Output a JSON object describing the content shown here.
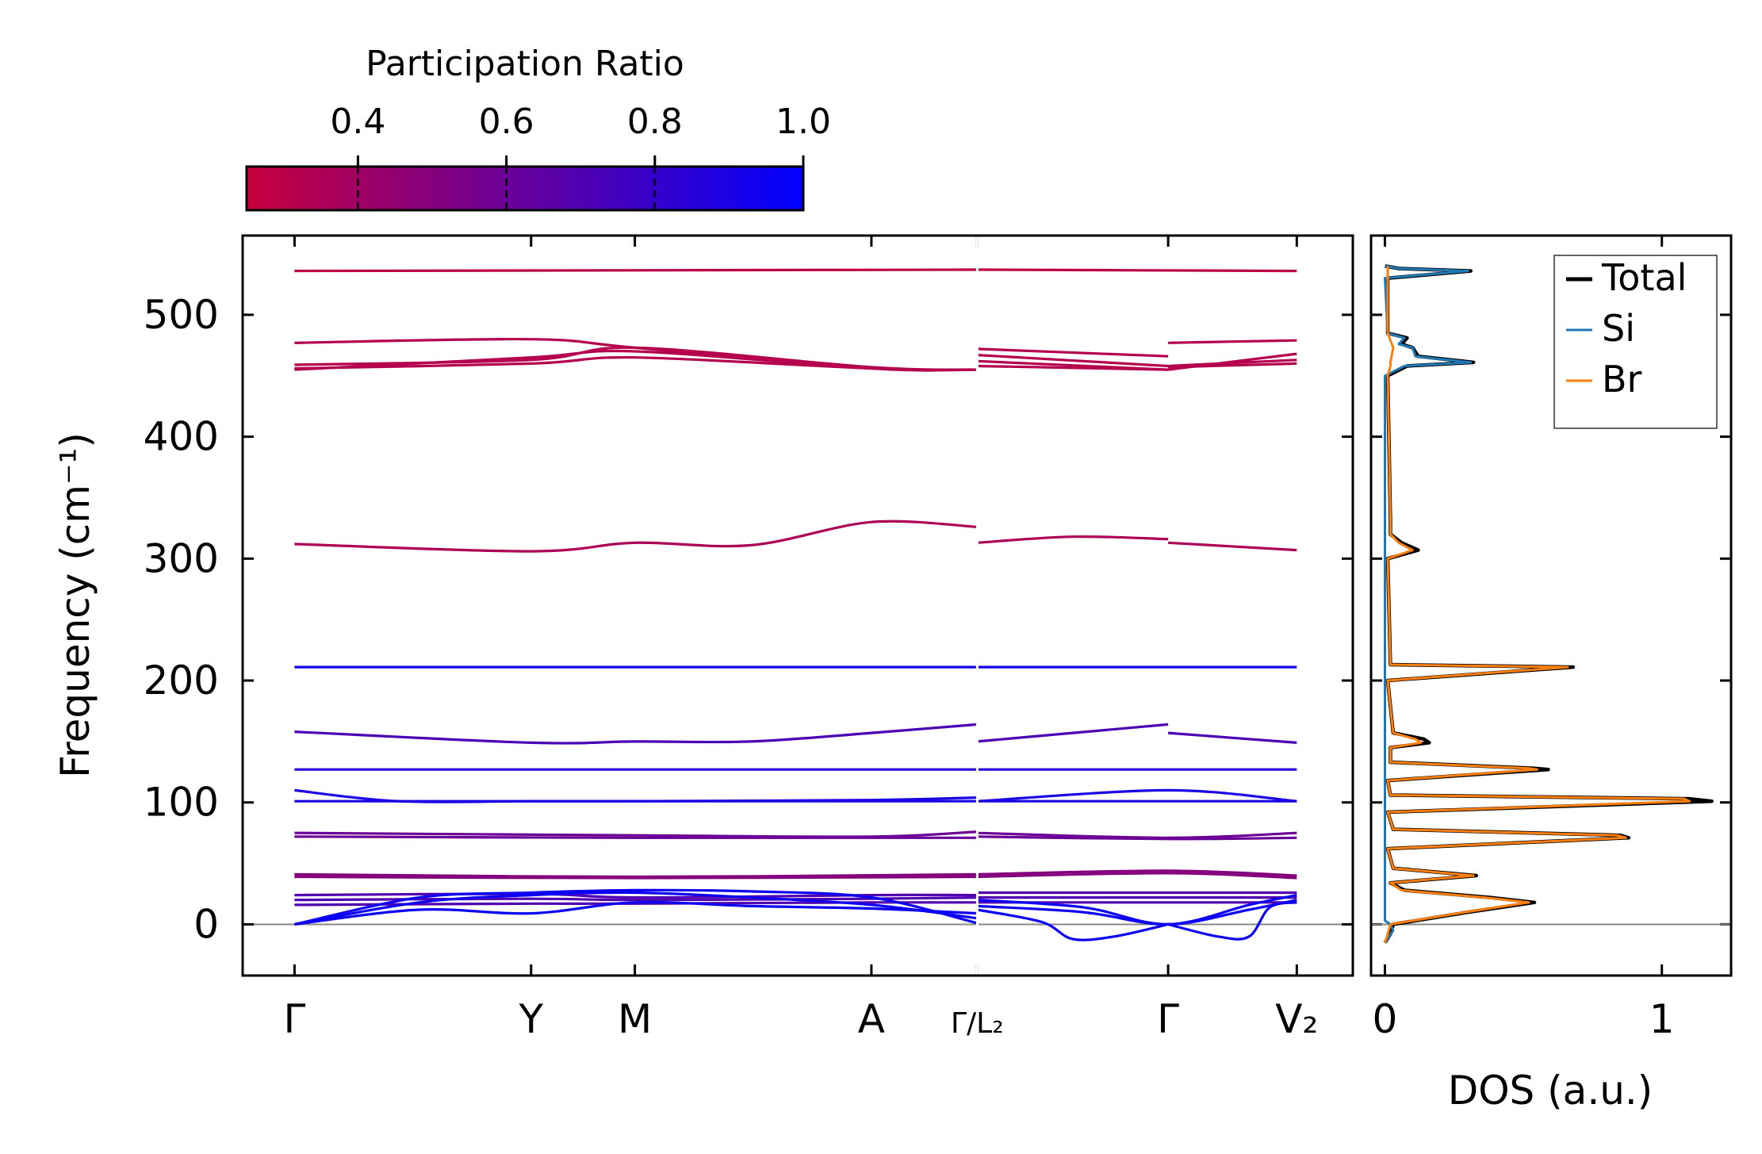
{
  "chart_data": [
    {
      "type": "line",
      "subtype": "phonon-band-structure",
      "ylabel": "Frequency (cm⁻¹)",
      "ylim": [
        -42,
        565
      ],
      "yticks": [
        0,
        100,
        200,
        300,
        400,
        500
      ],
      "ytick_labels": [
        "0",
        "100",
        "200",
        "300",
        "400",
        "500"
      ],
      "xlim": [
        -0.25,
        5.1
      ],
      "high_symmetry_points": [
        {
          "x": 0.0,
          "label": "Γ"
        },
        {
          "x": 1.14,
          "label": "Y"
        },
        {
          "x": 1.64,
          "label": "M"
        },
        {
          "x": 2.78,
          "label": "A"
        },
        {
          "x": 3.29,
          "label": "Γ/L₂"
        },
        {
          "x": 4.21,
          "label": "Γ"
        },
        {
          "x": 4.83,
          "label": "V₂"
        }
      ],
      "segment_breaks": [
        3.29
      ],
      "zero_line": 0,
      "colorbar": {
        "label": "Participation Ratio",
        "range": [
          0.25,
          1.0
        ],
        "ticks": [
          0.4,
          0.6,
          0.8,
          1.0
        ],
        "tick_labels": [
          "0.4",
          "0.6",
          "0.8",
          "1.0"
        ],
        "color_low": "#c8003c",
        "color_high": "#0000ff"
      },
      "bands": [
        {
          "pr": 0.3,
          "x": [
            0,
            3.29
          ],
          "y": [
            536,
            537
          ]
        },
        {
          "pr": 0.3,
          "x": [
            3.29,
            4.83
          ],
          "y": [
            537,
            536
          ]
        },
        {
          "pr": 0.32,
          "x": [
            0,
            1.14,
            1.64,
            2.78,
            3.29
          ],
          "y": [
            477,
            480,
            473,
            456,
            455
          ]
        },
        {
          "pr": 0.32,
          "x": [
            0,
            1.14,
            1.64,
            2.78,
            3.29
          ],
          "y": [
            455,
            465,
            470,
            456,
            455
          ]
        },
        {
          "pr": 0.32,
          "x": [
            0,
            1.14,
            1.64,
            2.78,
            3.29
          ],
          "y": [
            456,
            460,
            465,
            456,
            455
          ]
        },
        {
          "pr": 0.32,
          "x": [
            0,
            1.14,
            1.64,
            2.78,
            3.29
          ],
          "y": [
            459,
            463,
            473,
            457,
            455
          ]
        },
        {
          "pr": 0.32,
          "x": [
            3.29,
            4.21
          ],
          "y": [
            472,
            466
          ]
        },
        {
          "pr": 0.32,
          "x": [
            3.29,
            4.21
          ],
          "y": [
            467,
            458
          ]
        },
        {
          "pr": 0.32,
          "x": [
            3.29,
            4.21
          ],
          "y": [
            462,
            455
          ]
        },
        {
          "pr": 0.32,
          "x": [
            3.29,
            4.21
          ],
          "y": [
            458,
            455
          ]
        },
        {
          "pr": 0.32,
          "x": [
            4.21,
            4.83
          ],
          "y": [
            477,
            479
          ]
        },
        {
          "pr": 0.32,
          "x": [
            4.21,
            4.83
          ],
          "y": [
            455,
            468
          ]
        },
        {
          "pr": 0.32,
          "x": [
            4.21,
            4.83
          ],
          "y": [
            458,
            463
          ]
        },
        {
          "pr": 0.32,
          "x": [
            4.21,
            4.83
          ],
          "y": [
            457,
            460
          ]
        },
        {
          "pr": 0.35,
          "x": [
            0,
            1.14,
            1.64,
            2.2,
            2.78,
            3.29
          ],
          "y": [
            312,
            306,
            313,
            311,
            330,
            326
          ]
        },
        {
          "pr": 0.35,
          "x": [
            3.29,
            3.75,
            4.21
          ],
          "y": [
            313,
            318,
            316
          ]
        },
        {
          "pr": 0.35,
          "x": [
            4.21,
            4.83
          ],
          "y": [
            313,
            307
          ]
        },
        {
          "pr": 0.93,
          "x": [
            0,
            3.29
          ],
          "y": [
            211,
            211
          ]
        },
        {
          "pr": 0.93,
          "x": [
            3.29,
            4.83
          ],
          "y": [
            211,
            211
          ]
        },
        {
          "pr": 0.72,
          "x": [
            0,
            1.14,
            1.64,
            2.2,
            2.78,
            3.29
          ],
          "y": [
            158,
            149,
            150,
            150,
            157,
            164
          ]
        },
        {
          "pr": 0.72,
          "x": [
            3.29,
            4.21
          ],
          "y": [
            150,
            164
          ]
        },
        {
          "pr": 0.72,
          "x": [
            4.21,
            4.83
          ],
          "y": [
            157,
            149
          ]
        },
        {
          "pr": 0.85,
          "x": [
            0,
            3.29
          ],
          "y": [
            127,
            127
          ]
        },
        {
          "pr": 0.85,
          "x": [
            3.29,
            4.83
          ],
          "y": [
            127,
            127
          ]
        },
        {
          "pr": 0.9,
          "x": [
            0,
            0.5,
            1.14,
            1.64,
            2.78,
            3.29
          ],
          "y": [
            110,
            101,
            101,
            101,
            102,
            104
          ]
        },
        {
          "pr": 0.9,
          "x": [
            0,
            1.14,
            2.78,
            3.29
          ],
          "y": [
            101,
            101,
            101,
            101
          ]
        },
        {
          "pr": 0.9,
          "x": [
            3.29,
            4.21,
            4.83
          ],
          "y": [
            101,
            110,
            101
          ]
        },
        {
          "pr": 0.9,
          "x": [
            3.29,
            4.21,
            4.83
          ],
          "y": [
            101,
            101,
            101
          ]
        },
        {
          "pr": 0.6,
          "x": [
            0,
            1.64,
            2.78,
            3.29
          ],
          "y": [
            75,
            73,
            72,
            76
          ]
        },
        {
          "pr": 0.6,
          "x": [
            0,
            1.64,
            2.78,
            3.29
          ],
          "y": [
            72,
            71,
            71,
            71
          ]
        },
        {
          "pr": 0.6,
          "x": [
            3.29,
            4.21,
            4.83
          ],
          "y": [
            75,
            71,
            75
          ]
        },
        {
          "pr": 0.6,
          "x": [
            3.29,
            4.21,
            4.83
          ],
          "y": [
            72,
            70,
            71
          ]
        },
        {
          "pr": 0.5,
          "x": [
            0,
            1.64,
            3.29
          ],
          "y": [
            41,
            39,
            41
          ]
        },
        {
          "pr": 0.5,
          "x": [
            0,
            1.64,
            3.29
          ],
          "y": [
            39,
            38,
            39
          ]
        },
        {
          "pr": 0.5,
          "x": [
            3.29,
            4.21,
            4.83
          ],
          "y": [
            41,
            44,
            40
          ]
        },
        {
          "pr": 0.5,
          "x": [
            3.29,
            4.21,
            4.83
          ],
          "y": [
            39,
            42,
            38
          ]
        },
        {
          "pr": 0.7,
          "x": [
            0,
            1.14,
            1.64,
            2.78,
            3.29
          ],
          "y": [
            24,
            25,
            22,
            24,
            24
          ]
        },
        {
          "pr": 0.7,
          "x": [
            0,
            1.14,
            1.64,
            2.78,
            3.29
          ],
          "y": [
            20,
            21,
            20,
            21,
            22
          ]
        },
        {
          "pr": 0.7,
          "x": [
            0,
            1.14,
            1.64,
            2.78,
            3.29
          ],
          "y": [
            16,
            17,
            17,
            18,
            18
          ]
        },
        {
          "pr": 0.95,
          "x": [
            0,
            0.6,
            1.14,
            1.64,
            2.2,
            2.78,
            3.29
          ],
          "y": [
            0,
            22,
            26,
            28,
            27,
            22,
            1
          ]
        },
        {
          "pr": 0.95,
          "x": [
            0,
            0.6,
            1.14,
            1.64,
            2.2,
            2.78,
            3.29
          ],
          "y": [
            0,
            18,
            24,
            26,
            22,
            16,
            5
          ]
        },
        {
          "pr": 0.95,
          "x": [
            0,
            0.6,
            1.14,
            1.64,
            2.2,
            2.78,
            3.29
          ],
          "y": [
            0,
            12,
            9,
            18,
            15,
            13,
            9
          ]
        },
        {
          "pr": 0.7,
          "x": [
            3.29,
            4.21,
            4.83
          ],
          "y": [
            26,
            26,
            26
          ]
        },
        {
          "pr": 0.7,
          "x": [
            3.29,
            4.21,
            4.83
          ],
          "y": [
            22,
            22,
            22
          ]
        },
        {
          "pr": 0.7,
          "x": [
            3.29,
            4.21,
            4.83
          ],
          "y": [
            18,
            18,
            18
          ]
        },
        {
          "pr": 0.95,
          "x": [
            3.29,
            3.6,
            3.75,
            3.95,
            4.21
          ],
          "y": [
            12,
            2,
            -12,
            -10,
            0
          ]
        },
        {
          "pr": 0.95,
          "x": [
            4.21,
            4.45,
            4.6,
            4.7,
            4.83
          ],
          "y": [
            0,
            -10,
            -10,
            14,
            18
          ]
        },
        {
          "pr": 0.95,
          "x": [
            3.29,
            3.8,
            4.21,
            4.6,
            4.83
          ],
          "y": [
            15,
            10,
            0,
            12,
            20
          ]
        },
        {
          "pr": 0.95,
          "x": [
            3.29,
            3.8,
            4.21,
            4.6,
            4.83
          ],
          "y": [
            20,
            14,
            0,
            16,
            24
          ]
        }
      ]
    },
    {
      "type": "line",
      "subtype": "density-of-states",
      "xlabel": "DOS (a.u.)",
      "xlim": [
        -0.05,
        1.25
      ],
      "xticks": [
        0,
        1
      ],
      "xtick_labels": [
        "0",
        "1"
      ],
      "ylim": [
        -42,
        565
      ],
      "legend_position": "top-right",
      "series": [
        {
          "name": "Total",
          "color": "#000000",
          "points": [
            [
              0.0,
              -15
            ],
            [
              0.02,
              -8
            ],
            [
              0.03,
              0
            ],
            [
              0.3,
              10
            ],
            [
              0.54,
              18
            ],
            [
              0.38,
              22
            ],
            [
              0.07,
              28
            ],
            [
              0.02,
              34
            ],
            [
              0.33,
              40
            ],
            [
              0.03,
              46
            ],
            [
              0.01,
              62
            ],
            [
              0.88,
              71
            ],
            [
              0.85,
              73
            ],
            [
              0.03,
              78
            ],
            [
              0.01,
              92
            ],
            [
              1.18,
              101
            ],
            [
              1.1,
              103
            ],
            [
              0.02,
              106
            ],
            [
              0.01,
              118
            ],
            [
              0.59,
              127
            ],
            [
              0.54,
              128
            ],
            [
              0.02,
              133
            ],
            [
              0.02,
              145
            ],
            [
              0.16,
              149
            ],
            [
              0.14,
              152
            ],
            [
              0.03,
              157
            ],
            [
              0.01,
              200
            ],
            [
              0.68,
              211
            ],
            [
              0.02,
              213
            ],
            [
              0.01,
              300
            ],
            [
              0.12,
              307
            ],
            [
              0.06,
              313
            ],
            [
              0.02,
              320
            ],
            [
              0.02,
              332
            ],
            [
              0.01,
              450
            ],
            [
              0.08,
              458
            ],
            [
              0.32,
              461
            ],
            [
              0.12,
              466
            ],
            [
              0.1,
              473
            ],
            [
              0.06,
              476
            ],
            [
              0.08,
              481
            ],
            [
              0.01,
              485
            ],
            [
              0.01,
              530
            ],
            [
              0.31,
              536
            ],
            [
              0.05,
              538
            ],
            [
              0.0,
              540
            ]
          ]
        },
        {
          "name": "Si",
          "color": "#1f77b4",
          "points": [
            [
              0.0,
              -15
            ],
            [
              0.03,
              -5
            ],
            [
              0.02,
              0
            ],
            [
              0.0,
              3
            ],
            [
              0.0,
              450
            ],
            [
              0.07,
              458
            ],
            [
              0.31,
              461
            ],
            [
              0.11,
              466
            ],
            [
              0.1,
              473
            ],
            [
              0.05,
              476
            ],
            [
              0.07,
              481
            ],
            [
              0.01,
              485
            ],
            [
              0.0,
              530
            ],
            [
              0.3,
              536
            ],
            [
              0.05,
              538
            ],
            [
              0.0,
              540
            ]
          ]
        },
        {
          "name": "Br",
          "color": "#ff7f0e",
          "points": [
            [
              0.0,
              -15
            ],
            [
              0.01,
              -8
            ],
            [
              0.02,
              0
            ],
            [
              0.29,
              10
            ],
            [
              0.52,
              18
            ],
            [
              0.36,
              22
            ],
            [
              0.06,
              28
            ],
            [
              0.02,
              34
            ],
            [
              0.32,
              40
            ],
            [
              0.03,
              46
            ],
            [
              0.01,
              62
            ],
            [
              0.87,
              71
            ],
            [
              0.84,
              73
            ],
            [
              0.03,
              78
            ],
            [
              0.01,
              92
            ],
            [
              1.1,
              101
            ],
            [
              1.08,
              103
            ],
            [
              0.02,
              106
            ],
            [
              0.01,
              118
            ],
            [
              0.55,
              127
            ],
            [
              0.52,
              128
            ],
            [
              0.02,
              133
            ],
            [
              0.02,
              145
            ],
            [
              0.13,
              149
            ],
            [
              0.11,
              152
            ],
            [
              0.03,
              157
            ],
            [
              0.01,
              200
            ],
            [
              0.66,
              211
            ],
            [
              0.02,
              213
            ],
            [
              0.01,
              300
            ],
            [
              0.1,
              307
            ],
            [
              0.05,
              313
            ],
            [
              0.02,
              320
            ],
            [
              0.02,
              332
            ],
            [
              0.01,
              450
            ],
            [
              0.02,
              458
            ],
            [
              0.02,
              461
            ],
            [
              0.03,
              473
            ],
            [
              0.01,
              485
            ],
            [
              0.01,
              540
            ]
          ]
        }
      ]
    }
  ]
}
